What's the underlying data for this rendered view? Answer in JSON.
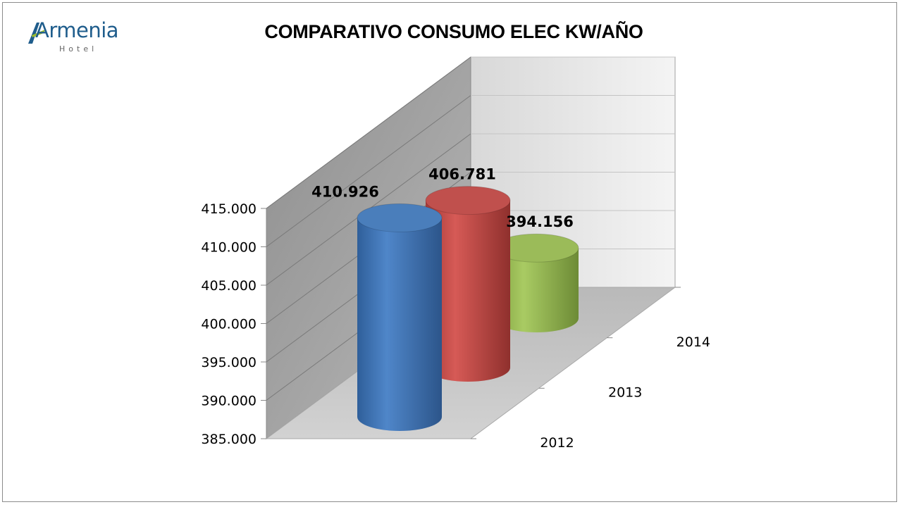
{
  "logo": {
    "word": "Armenia",
    "sub": "Hotel"
  },
  "chart_data": {
    "type": "bar",
    "title": "COMPARATIVO CONSUMO ELEC KW/AÑO",
    "categories": [
      "2012",
      "2013",
      "2014"
    ],
    "values": [
      410926,
      406781,
      394156
    ],
    "data_labels": [
      "410.926",
      "406.781",
      "394.156"
    ],
    "ylim": [
      385000,
      415000
    ],
    "y_ticks": [
      385000,
      390000,
      395000,
      400000,
      405000,
      410000,
      415000
    ],
    "y_tick_labels": [
      "385.000",
      "390.000",
      "395.000",
      "400.000",
      "405.000",
      "410.000",
      "415.000"
    ],
    "grid": true,
    "style": "3d-cylinder",
    "colors": [
      "#4a7ebb",
      "#c0504d",
      "#9bbb59"
    ]
  }
}
